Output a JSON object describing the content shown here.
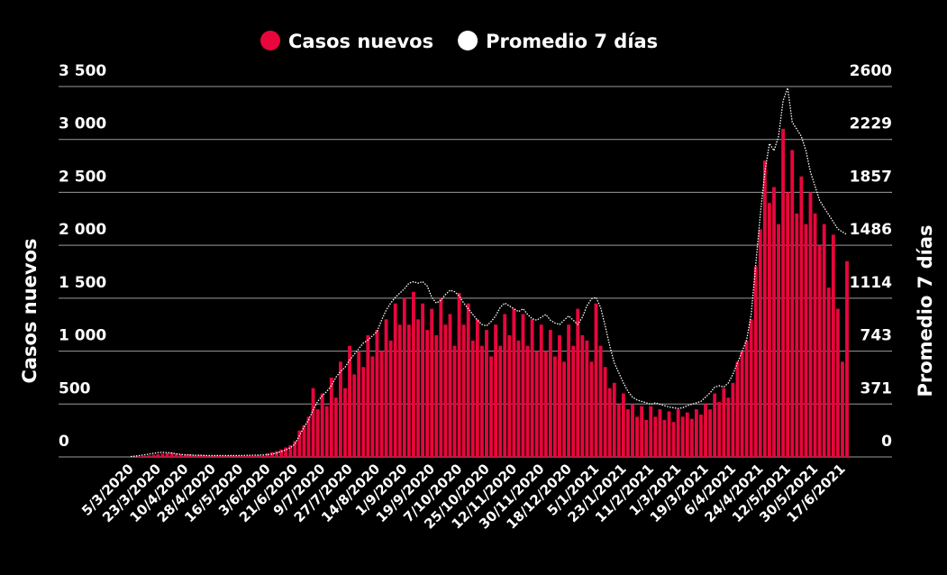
{
  "chart_data": {
    "type": "bar-line",
    "y_label": "Casos nuevos",
    "y2_label": "Promedio 7 días",
    "ylim": [
      0,
      3500
    ],
    "yticks": [
      0,
      500,
      {
        "value": 1000,
        "label": "1 000"
      },
      {
        "value": 1500,
        "label": "1 500"
      },
      {
        "value": 2000,
        "label": "2 000"
      },
      {
        "value": 2500,
        "label": "2 500"
      },
      {
        "value": 3000,
        "label": "3 000"
      },
      {
        "value": 3500,
        "label": "3 500"
      }
    ],
    "y2lim": [
      0,
      2600
    ],
    "y2ticks": [
      0,
      371,
      743,
      1114,
      1486,
      1857,
      2229,
      2600
    ],
    "grid": true,
    "legend": "top",
    "categories": [
      "5/3/2020",
      null,
      null,
      null,
      null,
      null,
      "23/3/2020",
      null,
      null,
      null,
      null,
      null,
      "10/4/2020",
      null,
      null,
      null,
      null,
      null,
      "28/4/2020",
      null,
      null,
      null,
      null,
      null,
      "16/5/2020",
      null,
      null,
      null,
      null,
      null,
      "3/6/2020",
      null,
      null,
      null,
      null,
      null,
      "21/6/2020",
      null,
      null,
      null,
      null,
      null,
      "9/7/2020",
      null,
      null,
      null,
      null,
      null,
      "27/7/2020",
      null,
      null,
      null,
      null,
      null,
      "14/8/2020",
      null,
      null,
      null,
      null,
      null,
      "1/9/2020",
      null,
      null,
      null,
      null,
      null,
      "19/9/2020",
      null,
      null,
      null,
      null,
      null,
      "7/10/2020",
      null,
      null,
      null,
      null,
      null,
      "25/10/2020",
      null,
      null,
      null,
      null,
      null,
      "12/11/2020",
      null,
      null,
      null,
      null,
      null,
      "30/11/2020",
      null,
      null,
      null,
      null,
      null,
      "18/12/2020",
      null,
      null,
      null,
      null,
      null,
      "5/1/2021",
      null,
      null,
      null,
      null,
      null,
      "23/1/2021",
      null,
      null,
      null,
      null,
      null,
      "11/2/2021",
      null,
      null,
      null,
      null,
      null,
      "1/3/2021",
      null,
      null,
      null,
      null,
      null,
      "19/3/2021",
      null,
      null,
      null,
      null,
      null,
      "6/4/2021",
      null,
      null,
      null,
      null,
      null,
      "24/4/2021",
      null,
      null,
      null,
      null,
      null,
      "12/5/2021",
      null,
      null,
      null,
      null,
      null,
      "30/5/2021",
      null,
      null,
      null,
      null,
      null,
      "17/6/2021",
      null
    ],
    "series": [
      {
        "name": "Casos nuevos",
        "color": "#e8063c",
        "values": [
          0,
          2,
          5,
          10,
          15,
          20,
          25,
          30,
          35,
          40,
          30,
          25,
          20,
          25,
          15,
          20,
          15,
          10,
          10,
          12,
          8,
          10,
          12,
          10,
          10,
          8,
          12,
          10,
          15,
          12,
          35,
          45,
          55,
          70,
          90,
          110,
          150,
          250,
          300,
          380,
          650,
          450,
          600,
          480,
          750,
          560,
          900,
          650,
          1050,
          780,
          1000,
          850,
          1150,
          950,
          1200,
          1000,
          1300,
          1100,
          1450,
          1250,
          1500,
          1250,
          1560,
          1300,
          1450,
          1200,
          1400,
          1150,
          1500,
          1250,
          1350,
          1050,
          1550,
          1250,
          1450,
          1100,
          1300,
          1050,
          1200,
          950,
          1250,
          1050,
          1350,
          1150,
          1400,
          1100,
          1350,
          1050,
          1300,
          1000,
          1250,
          1000,
          1200,
          950,
          1150,
          900,
          1250,
          1050,
          1400,
          1150,
          1100,
          900,
          1450,
          1050,
          850,
          650,
          700,
          500,
          600,
          450,
          500,
          380,
          480,
          350,
          480,
          380,
          450,
          350,
          430,
          330,
          450,
          380,
          420,
          360,
          450,
          400,
          500,
          450,
          600,
          520,
          650,
          560,
          700,
          900,
          1000,
          1100,
          1300,
          1800,
          2150,
          2800,
          2400,
          2550,
          2200,
          3100,
          2500,
          2900,
          2300,
          2650,
          2200,
          2500,
          2300,
          2000,
          2200,
          1600,
          2100,
          1400,
          900,
          1850
        ]
      },
      {
        "name": "Promedio 7 días",
        "color": "#ffffff",
        "axis": "y2",
        "values": [
          3,
          6,
          10,
          15,
          20,
          25,
          30,
          32,
          30,
          28,
          22,
          18,
          15,
          14,
          12,
          12,
          11,
          10,
          10,
          10,
          10,
          10,
          10,
          10,
          10,
          11,
          12,
          12,
          13,
          14,
          16,
          20,
          28,
          38,
          50,
          65,
          90,
          150,
          210,
          260,
          330,
          390,
          430,
          460,
          500,
          560,
          600,
          630,
          680,
          720,
          760,
          800,
          820,
          850,
          880,
          960,
          1030,
          1080,
          1120,
          1150,
          1180,
          1220,
          1230,
          1220,
          1230,
          1200,
          1120,
          1080,
          1100,
          1140,
          1170,
          1160,
          1130,
          1080,
          1040,
          1000,
          960,
          930,
          920,
          950,
          990,
          1050,
          1080,
          1060,
          1040,
          1020,
          1040,
          1000,
          970,
          960,
          980,
          1000,
          960,
          940,
          930,
          960,
          990,
          960,
          930,
          980,
          1060,
          1110,
          1120,
          1050,
          920,
          780,
          660,
          590,
          520,
          460,
          420,
          400,
          390,
          380,
          370,
          380,
          370,
          360,
          350,
          345,
          340,
          345,
          360,
          370,
          380,
          390,
          420,
          450,
          490,
          500,
          490,
          520,
          580,
          660,
          740,
          820,
          1000,
          1350,
          1700,
          2000,
          2200,
          2150,
          2250,
          2500,
          2590,
          2350,
          2300,
          2250,
          2150,
          2000,
          1900,
          1800,
          1750,
          1700,
          1650,
          1600,
          1580,
          1560
        ]
      }
    ]
  }
}
